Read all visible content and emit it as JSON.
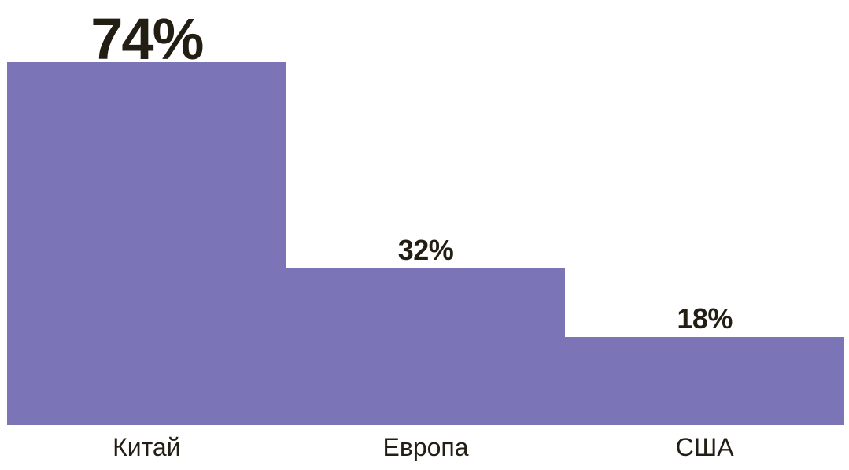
{
  "chart_data": {
    "type": "bar",
    "categories": [
      "Китай",
      "Европа",
      "США"
    ],
    "values": [
      74,
      32,
      18
    ],
    "value_labels": [
      "74%",
      "32%",
      "18%"
    ],
    "title": "",
    "xlabel": "",
    "ylabel": "",
    "ylim": [
      0,
      74
    ],
    "grid": false,
    "legend": false,
    "bar_color": "#7b74b6",
    "text_color": "#231e14",
    "background_color": "#ffffff",
    "layout_hint": "three contiguous full-width bars descending left to right, value labels above bar tops, category labels below baseline"
  }
}
